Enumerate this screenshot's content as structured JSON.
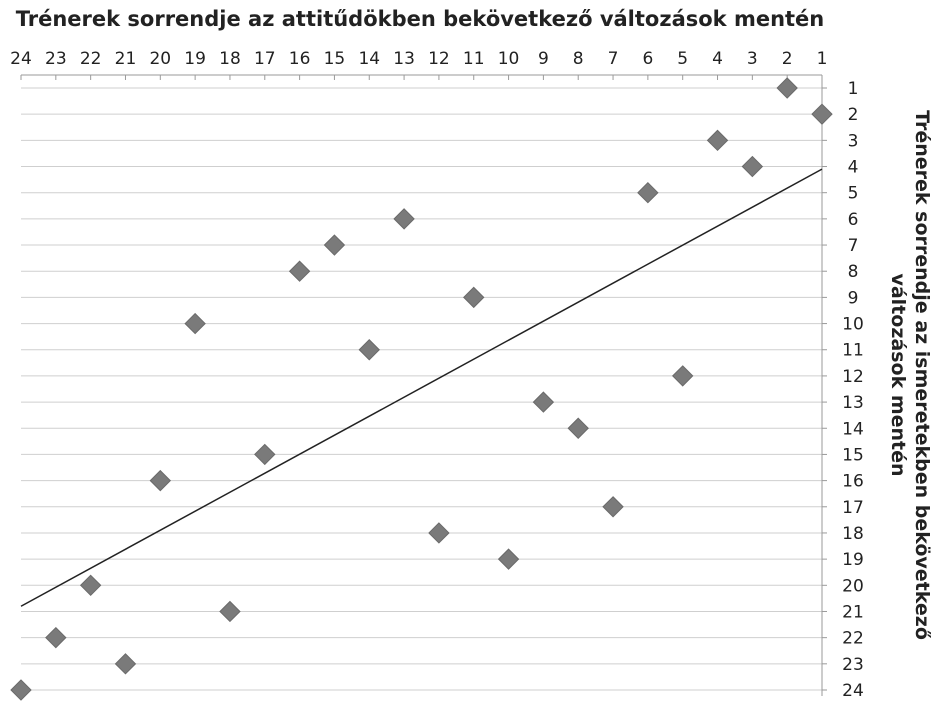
{
  "chart_data": {
    "type": "scatter",
    "title": "Trénerek sorrendje az attitűdökben bekövetkező változások mentén",
    "xlabel": "Trénerek sorrendje az attitűdökben bekövetkező változások mentén",
    "ylabel_line1": "Trénerek sorrendje az ismeretekben bekövetkező",
    "ylabel_line2": "változások mentén",
    "xlim": [
      1,
      24
    ],
    "x_reversed": true,
    "ylim": [
      1,
      24
    ],
    "y_reversed": true,
    "x_ticks": [
      "1",
      "2",
      "3",
      "4",
      "5",
      "6",
      "7",
      "8",
      "9",
      "10",
      "11",
      "12",
      "13",
      "14",
      "15",
      "16",
      "17",
      "18",
      "19",
      "20",
      "21",
      "22",
      "23",
      "24"
    ],
    "y_ticks": [
      "1",
      "2",
      "3",
      "4",
      "5",
      "6",
      "7",
      "8",
      "9",
      "10",
      "11",
      "12",
      "13",
      "14",
      "15",
      "16",
      "17",
      "18",
      "19",
      "20",
      "21",
      "22",
      "23",
      "24"
    ],
    "grid": true,
    "marker": "diamond",
    "colors": {
      "marker": "#7a7a7a",
      "trendline": "#222222",
      "grid": "#cfcfcf"
    },
    "points": [
      {
        "x": 2,
        "y": 1
      },
      {
        "x": 1,
        "y": 2
      },
      {
        "x": 4,
        "y": 3
      },
      {
        "x": 3,
        "y": 4
      },
      {
        "x": 6,
        "y": 5
      },
      {
        "x": 13,
        "y": 6
      },
      {
        "x": 15,
        "y": 7
      },
      {
        "x": 16,
        "y": 8
      },
      {
        "x": 11,
        "y": 9
      },
      {
        "x": 19,
        "y": 10
      },
      {
        "x": 14,
        "y": 11
      },
      {
        "x": 5,
        "y": 12
      },
      {
        "x": 9,
        "y": 13
      },
      {
        "x": 8,
        "y": 14
      },
      {
        "x": 17,
        "y": 15
      },
      {
        "x": 20,
        "y": 16
      },
      {
        "x": 7,
        "y": 17
      },
      {
        "x": 12,
        "y": 18
      },
      {
        "x": 10,
        "y": 19
      },
      {
        "x": 22,
        "y": 20
      },
      {
        "x": 18,
        "y": 21
      },
      {
        "x": 23,
        "y": 22
      },
      {
        "x": 21,
        "y": 23
      },
      {
        "x": 24,
        "y": 24
      }
    ],
    "trendline": {
      "from": {
        "x": 1,
        "y": 4.1
      },
      "to": {
        "x": 24,
        "y": 20.8
      }
    }
  }
}
